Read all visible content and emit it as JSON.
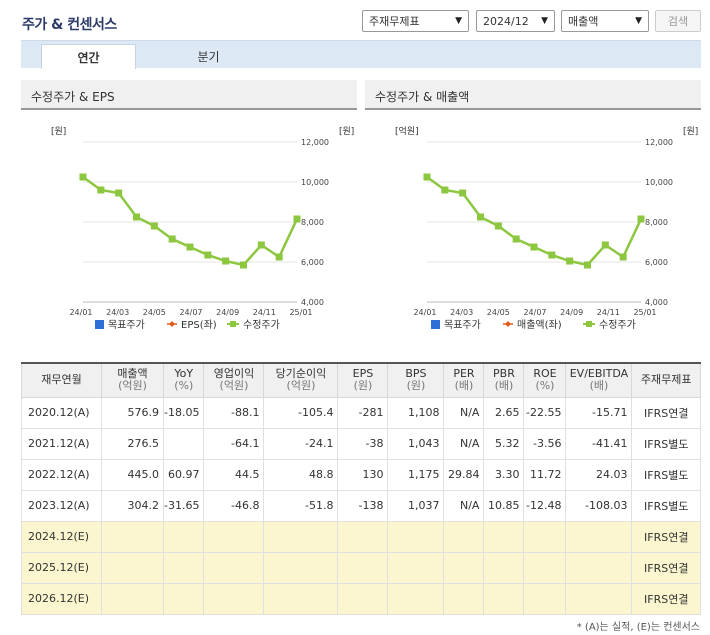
{
  "header": {
    "title": "주가 & 컨센서스"
  },
  "controls": {
    "basis": "주재무제표",
    "period": "2024/12",
    "metric": "매출액",
    "search_label": "검색"
  },
  "tabs": [
    {
      "label": "연간"
    },
    {
      "label": "분기"
    }
  ],
  "chart_left": {
    "title": "수정주가 & EPS",
    "left_unit": "[원]",
    "right_unit": "[원]",
    "legend": {
      "target": "목표주가",
      "secondary": "EPS(좌)",
      "price": "수정주가"
    }
  },
  "chart_right": {
    "title": "수정주가 & 매출액",
    "left_unit": "[억원]",
    "right_unit": "[원]",
    "legend": {
      "target": "목표주가",
      "secondary": "매출액(좌)",
      "price": "수정주가"
    }
  },
  "chart_data": [
    {
      "type": "line",
      "title": "수정주가 & EPS",
      "x_ticks": [
        "24/01",
        "24/03",
        "24/05",
        "24/07",
        "24/09",
        "24/11",
        "25/01"
      ],
      "y_ticks": [
        "12,000",
        "10,000",
        "8,000",
        "6,000",
        "4,000"
      ],
      "ylim": [
        4000,
        12000
      ],
      "series": [
        {
          "name": "수정주가",
          "color": "#8dc63f",
          "values": [
            10250,
            9600,
            9450,
            8250,
            7800,
            7150,
            6750,
            6350,
            6050,
            5850,
            6850,
            6250,
            8150
          ]
        }
      ]
    },
    {
      "type": "line",
      "title": "수정주가 & 매출액",
      "x_ticks": [
        "24/01",
        "24/03",
        "24/05",
        "24/07",
        "24/09",
        "24/11",
        "25/01"
      ],
      "y_ticks": [
        "12,000",
        "10,000",
        "8,000",
        "6,000",
        "4,000"
      ],
      "ylim": [
        4000,
        12000
      ],
      "series": [
        {
          "name": "수정주가",
          "color": "#8dc63f",
          "values": [
            10250,
            9600,
            9450,
            8250,
            7800,
            7150,
            6750,
            6350,
            6050,
            5850,
            6850,
            6250,
            8150
          ]
        }
      ]
    }
  ],
  "table": {
    "headers": [
      [
        "재무연월",
        ""
      ],
      [
        "매출액",
        "(억원)"
      ],
      [
        "YoY",
        "(%)"
      ],
      [
        "영업이익",
        "(억원)"
      ],
      [
        "당기순이익",
        "(억원)"
      ],
      [
        "EPS",
        "(원)"
      ],
      [
        "BPS",
        "(원)"
      ],
      [
        "PER",
        "(배)"
      ],
      [
        "PBR",
        "(배)"
      ],
      [
        "ROE",
        "(%)"
      ],
      [
        "EV/EBITDA",
        "(배)"
      ],
      [
        "주재무제표",
        ""
      ]
    ],
    "rows": [
      [
        "2020.12(A)",
        "576.9",
        "-18.05",
        "-88.1",
        "-105.4",
        "-281",
        "1,108",
        "N/A",
        "2.65",
        "-22.55",
        "-15.71",
        "IFRS연결"
      ],
      [
        "2021.12(A)",
        "276.5",
        "",
        "-64.1",
        "-24.1",
        "-38",
        "1,043",
        "N/A",
        "5.32",
        "-3.56",
        "-41.41",
        "IFRS별도"
      ],
      [
        "2022.12(A)",
        "445.0",
        "60.97",
        "44.5",
        "48.8",
        "130",
        "1,175",
        "29.84",
        "3.30",
        "11.72",
        "24.03",
        "IFRS별도"
      ],
      [
        "2023.12(A)",
        "304.2",
        "-31.65",
        "-46.8",
        "-51.8",
        "-138",
        "1,037",
        "N/A",
        "10.85",
        "-12.48",
        "-108.03",
        "IFRS별도"
      ],
      [
        "2024.12(E)",
        "",
        "",
        "",
        "",
        "",
        "",
        "",
        "",
        "",
        "",
        "IFRS연결"
      ],
      [
        "2025.12(E)",
        "",
        "",
        "",
        "",
        "",
        "",
        "",
        "",
        "",
        "",
        "IFRS연결"
      ],
      [
        "2026.12(E)",
        "",
        "",
        "",
        "",
        "",
        "",
        "",
        "",
        "",
        "",
        "IFRS연결"
      ]
    ]
  },
  "footnote": "* (A)는 실적, (E)는 컨센서스"
}
